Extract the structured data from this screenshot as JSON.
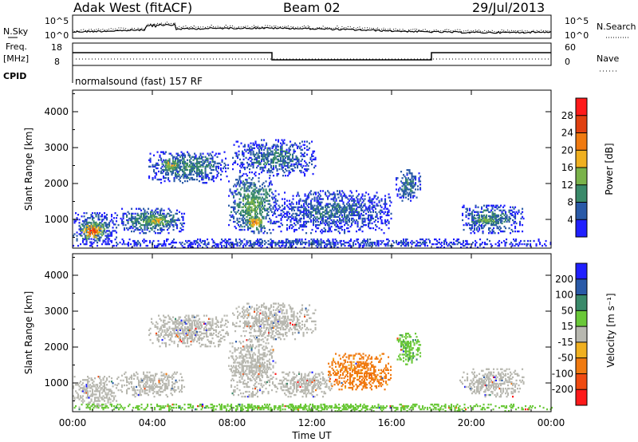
{
  "header": {
    "station": "Adak West (fitACF)",
    "beam": "Beam 02",
    "date": "29/Jul/2013"
  },
  "panel_labels": {
    "nsky": "N.Sky",
    "nsearch": "N.Search",
    "freq_line1": "Freq.",
    "freq_line2": "[MHz]",
    "nave": "Nave",
    "cpid": "CPID",
    "cpid_text": "normalsound (fast) 157 RF"
  },
  "small_axis_ticks": {
    "noise_top": "10^5",
    "noise_bottom": "10^0",
    "freq_top": "18",
    "freq_bottom": "8",
    "nave_top": "60",
    "nave_bottom": "0"
  },
  "colors": {
    "power_scale": [
      "#2020ff",
      "#2a5aa8",
      "#3a8a6a",
      "#7ab34a",
      "#f0b020",
      "#f07a10",
      "#e04010",
      "#ff1a1a"
    ],
    "velocity_scale": [
      "#ff1a1a",
      "#f04a10",
      "#f07a10",
      "#f0b020",
      "#b8b8b0",
      "#6ac838",
      "#3a8a6a",
      "#2a5aa8",
      "#2020ff"
    ]
  },
  "chart_data": [
    {
      "type": "heatmap",
      "name": "power",
      "xlabel": "",
      "ylabel": "Slant Range [km]",
      "x_ticks": [
        "00:00",
        "04:00",
        "08:00",
        "12:00",
        "16:00",
        "20:00",
        "00:00"
      ],
      "x_hours": [
        0,
        24
      ],
      "y_ticks": [
        "1000",
        "2000",
        "3000",
        "4000"
      ],
      "ylim": [
        200,
        4600
      ],
      "colorbar": {
        "label": "Power [dB]",
        "ticks": [
          "4",
          "8",
          "12",
          "16",
          "20",
          "24",
          "28"
        ],
        "range": [
          0,
          32
        ]
      },
      "echo_regions": [
        {
          "t0": 0.0,
          "t1": 2.2,
          "r0": 300,
          "r1": 1200,
          "power": 10
        },
        {
          "t0": 0.3,
          "t1": 1.6,
          "r0": 400,
          "r1": 900,
          "power": 28
        },
        {
          "t0": 2.2,
          "t1": 5.6,
          "r0": 600,
          "r1": 1300,
          "power": 12
        },
        {
          "t0": 3.5,
          "t1": 5.0,
          "r0": 800,
          "r1": 1100,
          "power": 22
        },
        {
          "t0": 3.8,
          "t1": 7.8,
          "r0": 2000,
          "r1": 2900,
          "power": 11
        },
        {
          "t0": 4.4,
          "t1": 5.4,
          "r0": 2300,
          "r1": 2700,
          "power": 20
        },
        {
          "t0": 7.8,
          "t1": 10.2,
          "r0": 600,
          "r1": 2200,
          "power": 14
        },
        {
          "t0": 8.6,
          "t1": 9.6,
          "r0": 700,
          "r1": 1100,
          "power": 24
        },
        {
          "t0": 8.0,
          "t1": 12.2,
          "r0": 2200,
          "r1": 3200,
          "power": 9
        },
        {
          "t0": 10.0,
          "t1": 16.0,
          "r0": 600,
          "r1": 1800,
          "power": 8
        },
        {
          "t0": 16.2,
          "t1": 17.4,
          "r0": 1500,
          "r1": 2400,
          "power": 10
        },
        {
          "t0": 19.4,
          "t1": 22.6,
          "r0": 600,
          "r1": 1400,
          "power": 10
        },
        {
          "t0": 20.0,
          "t1": 21.5,
          "r0": 800,
          "r1": 1100,
          "power": 16
        },
        {
          "t0": 0.0,
          "t1": 24.0,
          "r0": 200,
          "r1": 450,
          "power": 6
        }
      ]
    },
    {
      "type": "heatmap",
      "name": "velocity",
      "xlabel": "Time UT",
      "ylabel": "Slant Range [km]",
      "x_ticks": [
        "00:00",
        "04:00",
        "08:00",
        "12:00",
        "16:00",
        "20:00",
        "00:00"
      ],
      "x_hours": [
        0,
        24
      ],
      "y_ticks": [
        "1000",
        "2000",
        "3000",
        "4000"
      ],
      "ylim": [
        200,
        4600
      ],
      "colorbar": {
        "label": "Velocity [m s⁻¹]",
        "ticks": [
          "200",
          "100",
          "50",
          "15",
          "-15",
          "-50",
          "-100",
          "-200"
        ],
        "range": [
          -250,
          250
        ]
      },
      "echo_regions": [
        {
          "t0": 0.0,
          "t1": 2.2,
          "r0": 300,
          "r1": 1200,
          "velocity": 0
        },
        {
          "t0": 2.2,
          "t1": 5.6,
          "r0": 600,
          "r1": 1300,
          "velocity": 0
        },
        {
          "t0": 3.8,
          "t1": 7.8,
          "r0": 2000,
          "r1": 2900,
          "velocity": 0
        },
        {
          "t0": 7.8,
          "t1": 10.2,
          "r0": 600,
          "r1": 2200,
          "velocity": 0
        },
        {
          "t0": 8.0,
          "t1": 12.2,
          "r0": 2200,
          "r1": 3200,
          "velocity": 0
        },
        {
          "t0": 10.0,
          "t1": 13.0,
          "r0": 600,
          "r1": 1300,
          "velocity": 0
        },
        {
          "t0": 12.8,
          "t1": 16.0,
          "r0": 800,
          "r1": 1800,
          "velocity": -60
        },
        {
          "t0": 16.2,
          "t1": 17.4,
          "r0": 1500,
          "r1": 2400,
          "velocity": 40
        },
        {
          "t0": 19.4,
          "t1": 22.6,
          "r0": 600,
          "r1": 1400,
          "velocity": 0
        },
        {
          "t0": 0.0,
          "t1": 24.0,
          "r0": 200,
          "r1": 400,
          "velocity": 30
        }
      ]
    }
  ]
}
